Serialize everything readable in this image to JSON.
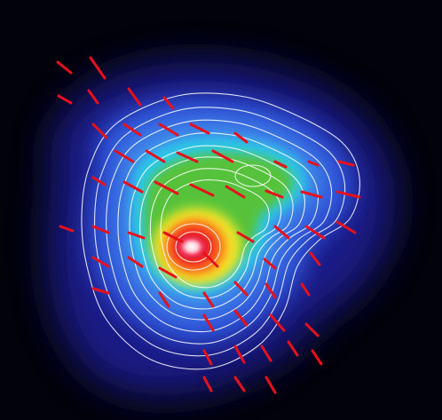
{
  "image": {
    "description_type": "polarization-map",
    "colors": {
      "background": "#02020a",
      "outer_halo": "#1a1f8f",
      "mid_blue": "#2d52d8",
      "cyan": "#29c8e8",
      "green": "#56c23a",
      "yellow": "#f1ea2a",
      "orange": "#ff8a1c",
      "red": "#ee1d24",
      "core": "#ffe6ea",
      "contour": "#ffffff",
      "vector": "#e8101a"
    }
  }
}
